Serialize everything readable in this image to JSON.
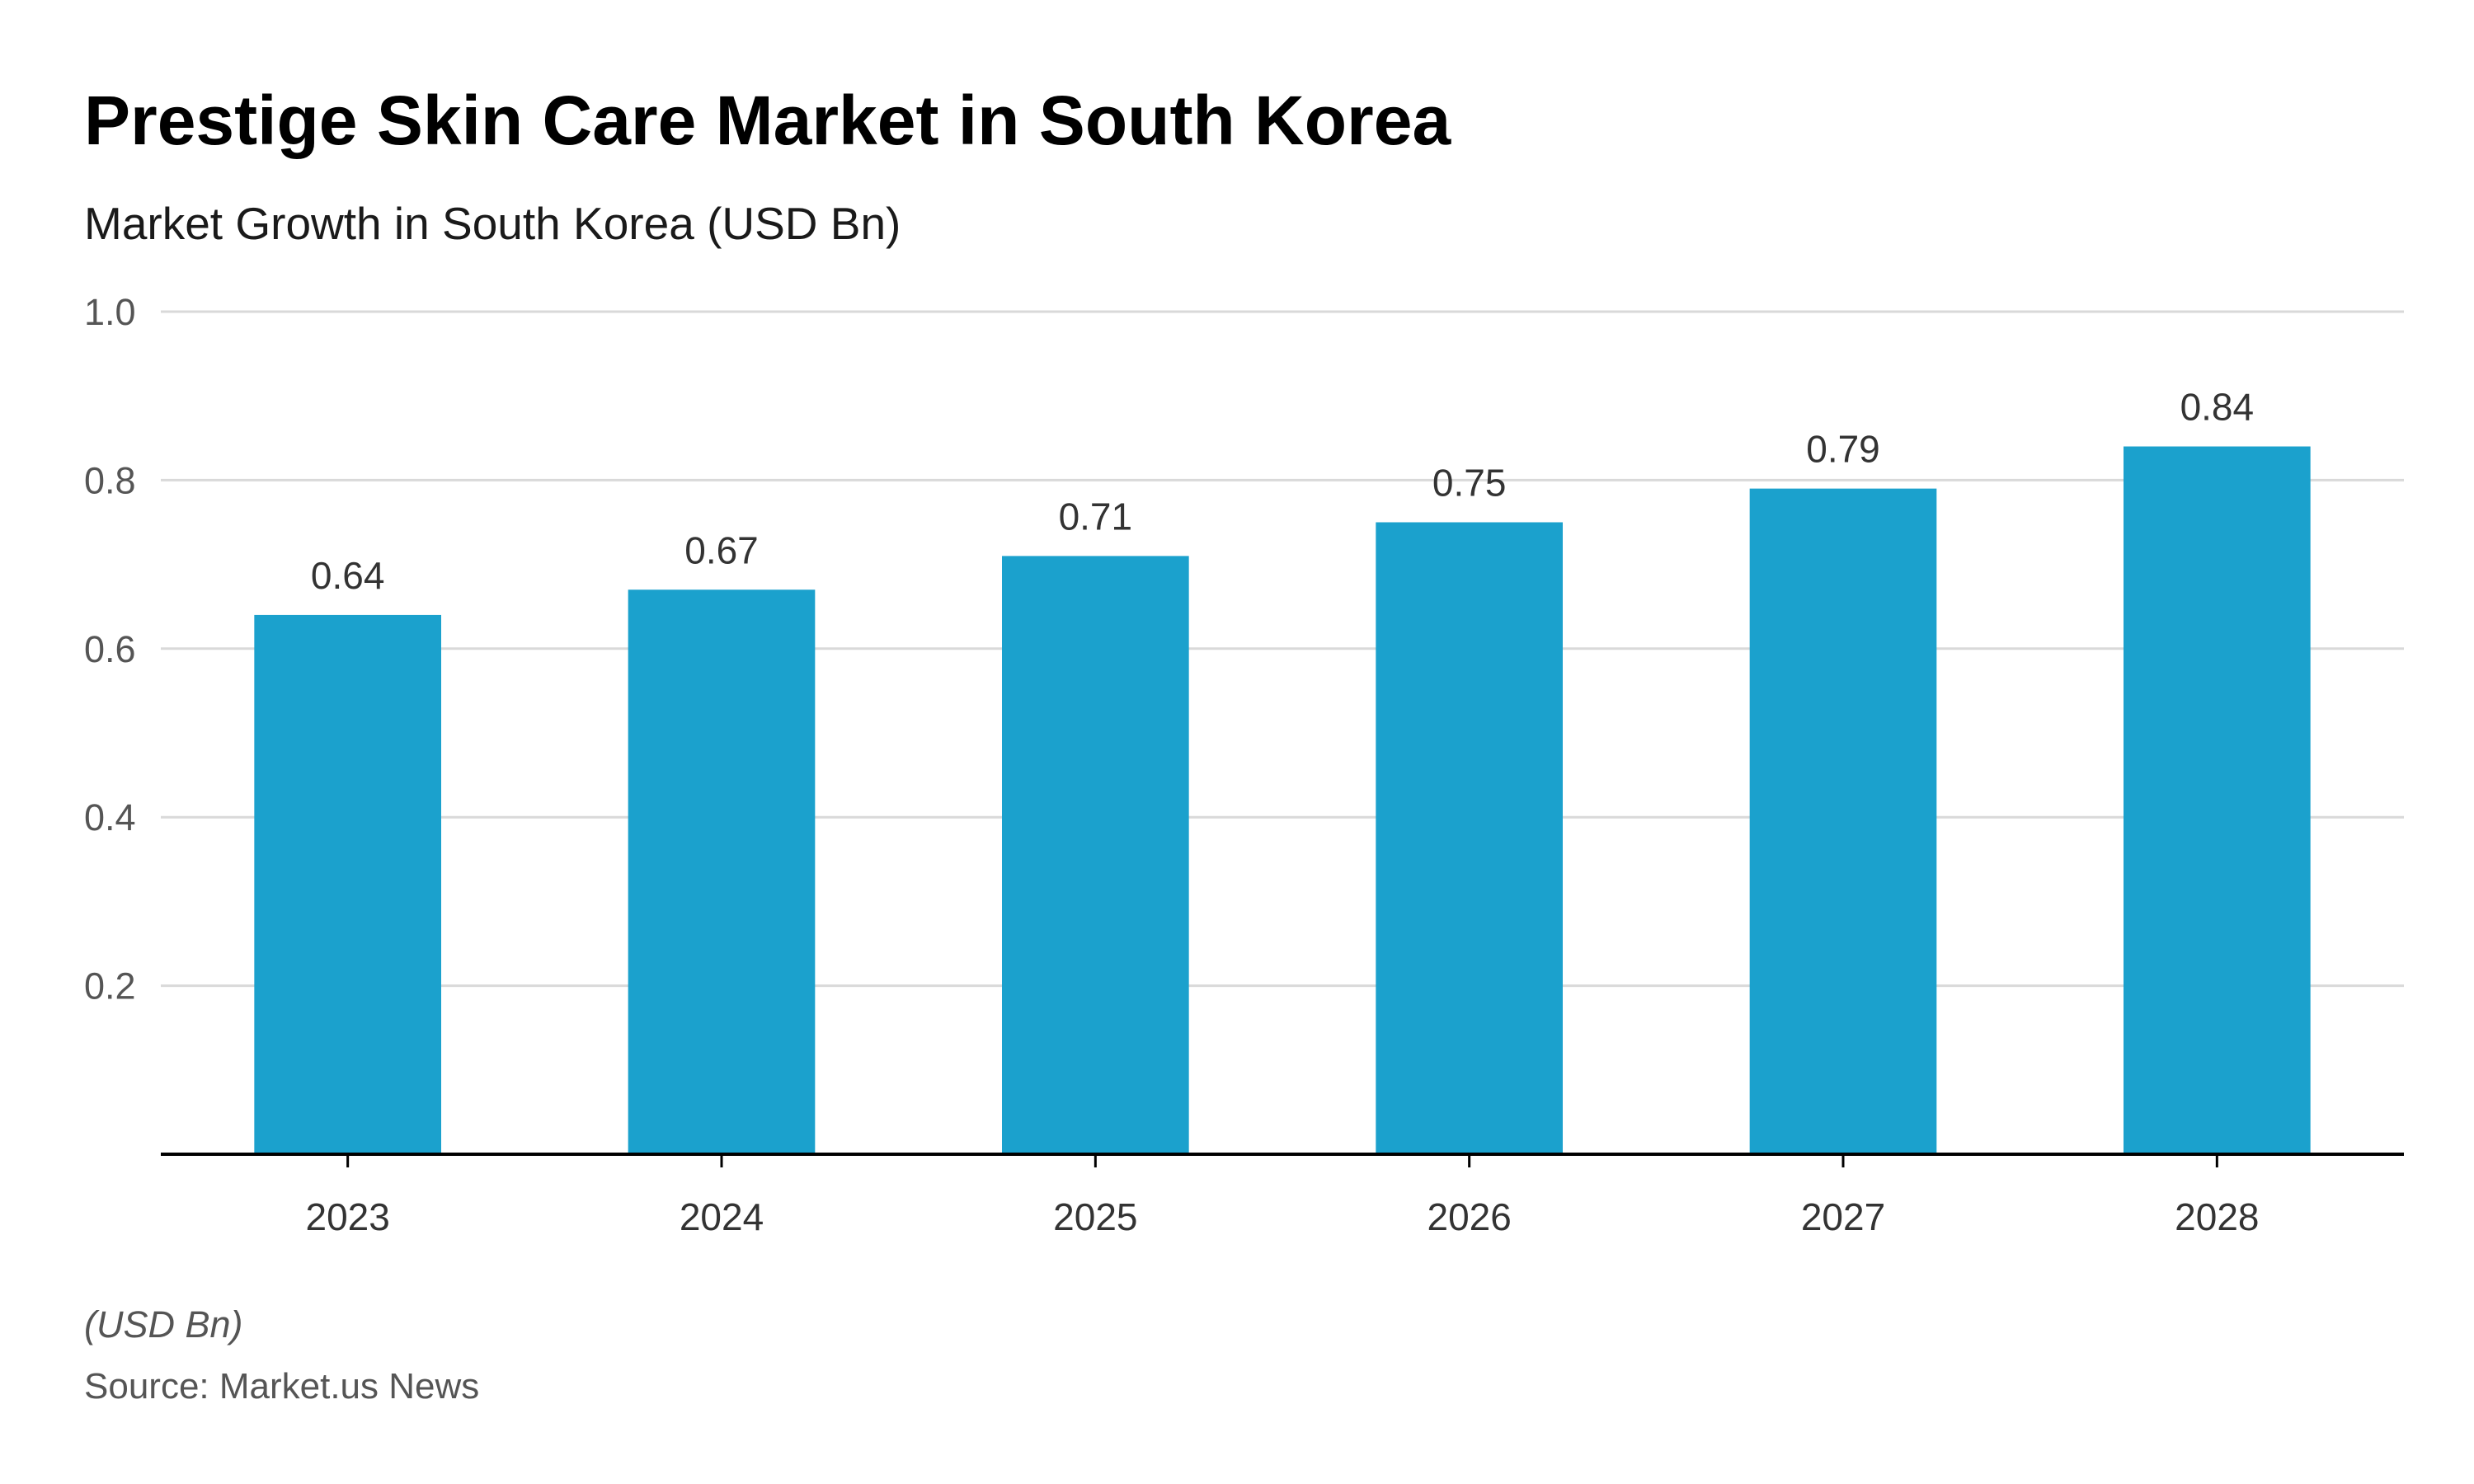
{
  "header": {
    "title": "Prestige Skin Care Market in South Korea",
    "subtitle": "Market Growth in South Korea (USD Bn)"
  },
  "footer": {
    "unit_note": "(USD Bn)",
    "source": "Source: Market.us News"
  },
  "chart_data": {
    "type": "bar",
    "title": "Prestige Skin Care Market in South Korea",
    "subtitle": "Market Growth in South Korea (USD Bn)",
    "xlabel": "",
    "ylabel": "",
    "categories": [
      "2023",
      "2024",
      "2025",
      "2026",
      "2027",
      "2028"
    ],
    "values": [
      0.64,
      0.67,
      0.71,
      0.75,
      0.79,
      0.84
    ],
    "value_labels": [
      "0.64",
      "0.67",
      "0.71",
      "0.75",
      "0.79",
      "0.84"
    ],
    "y_ticks": [
      "0.2",
      "0.4",
      "0.6",
      "0.8",
      "1.0"
    ],
    "ylim": [
      0,
      1.0
    ],
    "grid": true,
    "legend": "none",
    "colors": {
      "bar": "#1ba1cd",
      "gridline": "#d9d9d9",
      "axis": "#000000"
    }
  }
}
